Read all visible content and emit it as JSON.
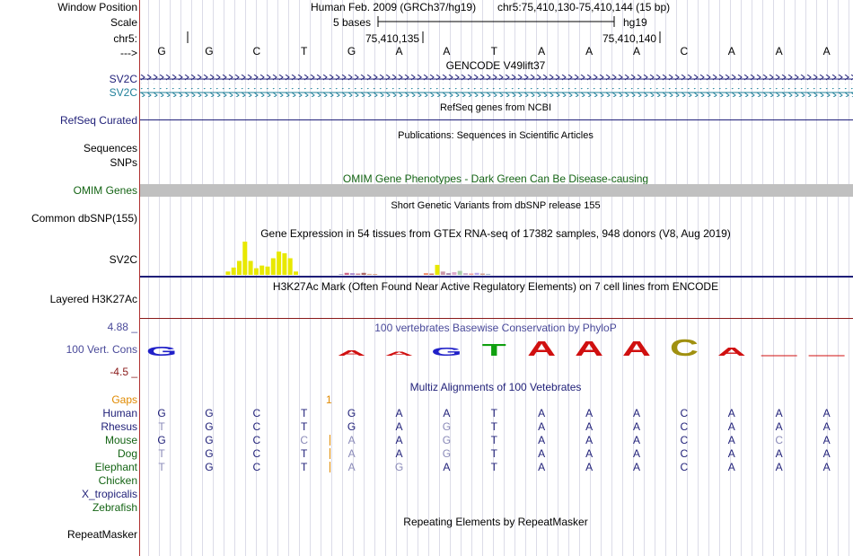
{
  "colors": {
    "navy": "#1f1f78",
    "teal": "#20809a",
    "green": "#146414",
    "red_label": "#8a1a1a",
    "gaps": "#e08a00",
    "phylop_label": "#4a4a9a",
    "omim_bar": "#c0c0c0",
    "gtex_yellow": "#e8e800"
  },
  "header": {
    "window_position_label": "Window Position",
    "scale_label": "Scale",
    "chr_label": "chr5:",
    "arrow_label": "--->",
    "assembly": "Human Feb. 2009 (GRCh37/hg19)",
    "position": "chr5:75,410,130-75,410,144 (15 bp)",
    "scale_text": "5 bases",
    "db": "hg19",
    "tick1": "75,410,135",
    "tick2": "75,410,140"
  },
  "sequence": [
    "G",
    "G",
    "C",
    "T",
    "G",
    "A",
    "A",
    "T",
    "A",
    "A",
    "A",
    "C",
    "A",
    "A",
    "A"
  ],
  "tracks": {
    "gencode_title": "GENCODE V49lift37",
    "gene1": "SV2C",
    "gene2": "SV2C",
    "refseq_title": "RefSeq genes from NCBI",
    "refseq_label": "RefSeq Curated",
    "pubs_title": "Publications: Sequences in Scientific Articles",
    "sequences_label": "Sequences",
    "snps_label": "SNPs",
    "omim_title": "OMIM Gene Phenotypes - Dark Green Can Be Disease-causing",
    "omim_label": "OMIM Genes",
    "dbsnp_title": "Short Genetic Variants from dbSNP release 155",
    "dbsnp_label": "Common dbSNP(155)",
    "gtex_title": "Gene Expression in 54 tissues from GTEx RNA-seq of 17382 samples, 948 donors (V8, Aug 2019)",
    "gtex_label": "SV2C",
    "h3k_title": "H3K27Ac Mark (Often Found Near Active Regulatory Elements) on 7 cell lines from ENCODE",
    "h3k_label": "Layered H3K27Ac",
    "phylop_title": "100 vertebrates Basewise Conservation by PhyloP",
    "phylop_max": "4.88 _",
    "phylop_label": "100 Vert. Cons",
    "phylop_min": "-4.5 _",
    "multiz_title": "Multiz Alignments of 100 Vetebrates",
    "gaps_label": "Gaps",
    "gaps_mark": "1",
    "rmsk_title": "Repeating Elements by RepeatMasker",
    "rmsk_label": "RepeatMasker"
  },
  "phylop_letters": [
    "G",
    "",
    "",
    "",
    "A",
    "A",
    "G",
    "T",
    "A",
    "A",
    "A",
    "C",
    "A",
    "",
    ""
  ],
  "phylop_heights": [
    0.55,
    0,
    0,
    0,
    0.3,
    0.25,
    0.5,
    0.7,
    0.9,
    0.9,
    0.9,
    1.0,
    0.5,
    0.05,
    0.05
  ],
  "phylop_colors": [
    "#2020c8",
    "",
    "",
    "",
    "#d01010",
    "#d01010",
    "#2020c8",
    "#10a010",
    "#d01010",
    "#d01010",
    "#d01010",
    "#a09010",
    "#d01010",
    "#d01010",
    "#d01010"
  ],
  "gtex_values": [
    0,
    0,
    0,
    0,
    0,
    0,
    0,
    0,
    0.1,
    0.22,
    0.42,
    1.0,
    0.42,
    0.2,
    0.28,
    0.25,
    0.5,
    0.7,
    0.65,
    0.5,
    0.1,
    0,
    0,
    0,
    0,
    0,
    0,
    0,
    0.02,
    0.06,
    0.05,
    0.04,
    0.06,
    0.03,
    0.02,
    0,
    0,
    0,
    0,
    0,
    0,
    0,
    0,
    0.05,
    0.04,
    0.3,
    0.1,
    0.05,
    0.08,
    0.12,
    0.05,
    0.04,
    0.06,
    0.04,
    0.03
  ],
  "gtex_colors": [
    "#ffaa88",
    "#ff9966",
    "#ff8855",
    "#ff7744",
    "#cc66cc",
    "#aa55aa",
    "#cc4444",
    "#ee88aa",
    "#e8e800",
    "#e8e800",
    "#e8e800",
    "#e8e800",
    "#e8e800",
    "#e8e800",
    "#e8e800",
    "#e8e800",
    "#e8e800",
    "#e8e800",
    "#e8e800",
    "#e8e800",
    "#e8e800",
    "#99cc66",
    "#66aa66",
    "#88cc88",
    "#aa8844",
    "#cc9966",
    "#88aacc",
    "#6688cc",
    "#9999cc",
    "#cc6688",
    "#aa88cc",
    "#cc8899",
    "#aa6666",
    "#ddaa88",
    "#cc8866",
    "#aa6644",
    "#88aa66",
    "#66aa88",
    "#4488aa",
    "#3366aa",
    "#6688ee",
    "#88aaee",
    "#cccc66",
    "#ee8866",
    "#cc7766",
    "#e8e800",
    "#cc99aa",
    "#aa88aa",
    "#ddaacc",
    "#aaccaa",
    "#ccaacc",
    "#ee9999",
    "#bbaaee",
    "#cc9988",
    "#aabbcc"
  ],
  "species": [
    {
      "name": "Human",
      "color": "#1f1f78",
      "bases": [
        "G",
        "G",
        "C",
        "T",
        "G",
        "A",
        "A",
        "T",
        "A",
        "A",
        "A",
        "C",
        "A",
        "A",
        "A"
      ],
      "faded": [
        0,
        0,
        0,
        0,
        0,
        0,
        0,
        0,
        0,
        0,
        0,
        0,
        0,
        0,
        0
      ]
    },
    {
      "name": "Rhesus",
      "color": "#1f1f78",
      "bases": [
        "T",
        "G",
        "C",
        "T",
        "G",
        "A",
        "G",
        "T",
        "A",
        "A",
        "A",
        "C",
        "A",
        "A",
        "A"
      ],
      "faded": [
        1,
        0,
        0,
        0,
        0,
        0,
        1,
        0,
        0,
        0,
        0,
        0,
        0,
        0,
        0
      ]
    },
    {
      "name": "Mouse",
      "color": "#146414",
      "bases": [
        "G",
        "G",
        "C",
        "C",
        "A",
        "A",
        "G",
        "T",
        "A",
        "A",
        "A",
        "C",
        "A",
        "C",
        "A"
      ],
      "faded": [
        0,
        0,
        0,
        1,
        1,
        0,
        1,
        0,
        0,
        0,
        0,
        0,
        0,
        1,
        0
      ]
    },
    {
      "name": "Dog",
      "color": "#146414",
      "bases": [
        "T",
        "G",
        "C",
        "T",
        "A",
        "A",
        "G",
        "T",
        "A",
        "A",
        "A",
        "C",
        "A",
        "A",
        "A"
      ],
      "faded": [
        1,
        0,
        0,
        0,
        1,
        0,
        1,
        0,
        0,
        0,
        0,
        0,
        0,
        0,
        0
      ]
    },
    {
      "name": "Elephant",
      "color": "#146414",
      "bases": [
        "T",
        "G",
        "C",
        "T",
        "A",
        "G",
        "A",
        "T",
        "A",
        "A",
        "A",
        "C",
        "A",
        "A",
        "A"
      ],
      "faded": [
        1,
        0,
        0,
        0,
        1,
        1,
        0,
        0,
        0,
        0,
        0,
        0,
        0,
        0,
        0
      ]
    },
    {
      "name": "Chicken",
      "color": "#146414",
      "bases": [],
      "faded": []
    },
    {
      "name": "X_tropicalis",
      "color": "#1f1f78",
      "bases": [],
      "faded": []
    },
    {
      "name": "Zebrafish",
      "color": "#146414",
      "bases": [],
      "faded": []
    }
  ]
}
